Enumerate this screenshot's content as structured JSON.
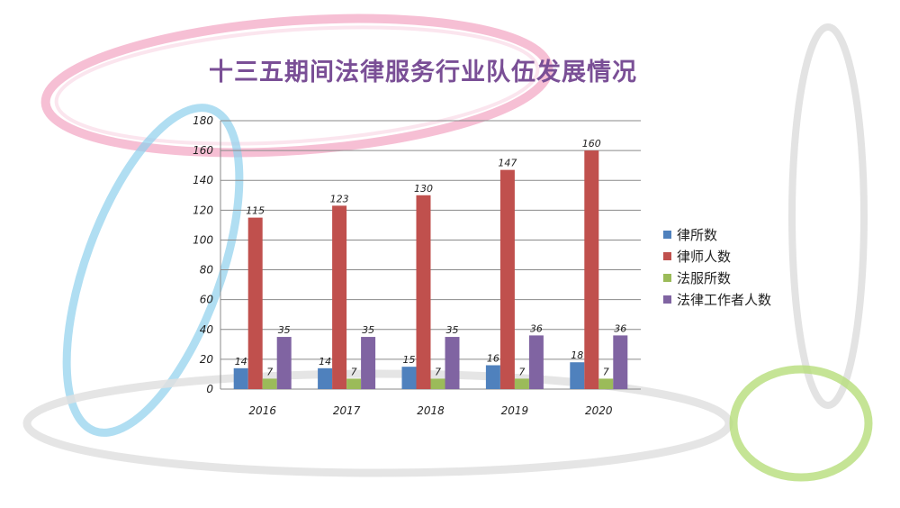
{
  "slide": {
    "title": "十三五期间法律服务行业队伍发展情况"
  },
  "chart_data": {
    "type": "bar",
    "title": "十三五期间法律服务行业队伍发展情况",
    "categories": [
      "2016",
      "2017",
      "2018",
      "2019",
      "2020"
    ],
    "ylim": [
      0,
      180
    ],
    "yticks": [
      0,
      20,
      40,
      60,
      80,
      100,
      120,
      140,
      160,
      180
    ],
    "grid": true,
    "legend_position": "right",
    "series": [
      {
        "name": "律所数",
        "color": "#4f81bd",
        "values": [
          14,
          14,
          15,
          16,
          18
        ]
      },
      {
        "name": "律师人数",
        "color": "#c0504d",
        "values": [
          115,
          123,
          130,
          147,
          160
        ]
      },
      {
        "name": "法服所数",
        "color": "#9bbb59",
        "values": [
          7,
          7,
          7,
          7,
          7
        ]
      },
      {
        "name": "法律工作者人数",
        "color": "#8064a2",
        "values": [
          35,
          35,
          35,
          36,
          36
        ]
      }
    ]
  }
}
